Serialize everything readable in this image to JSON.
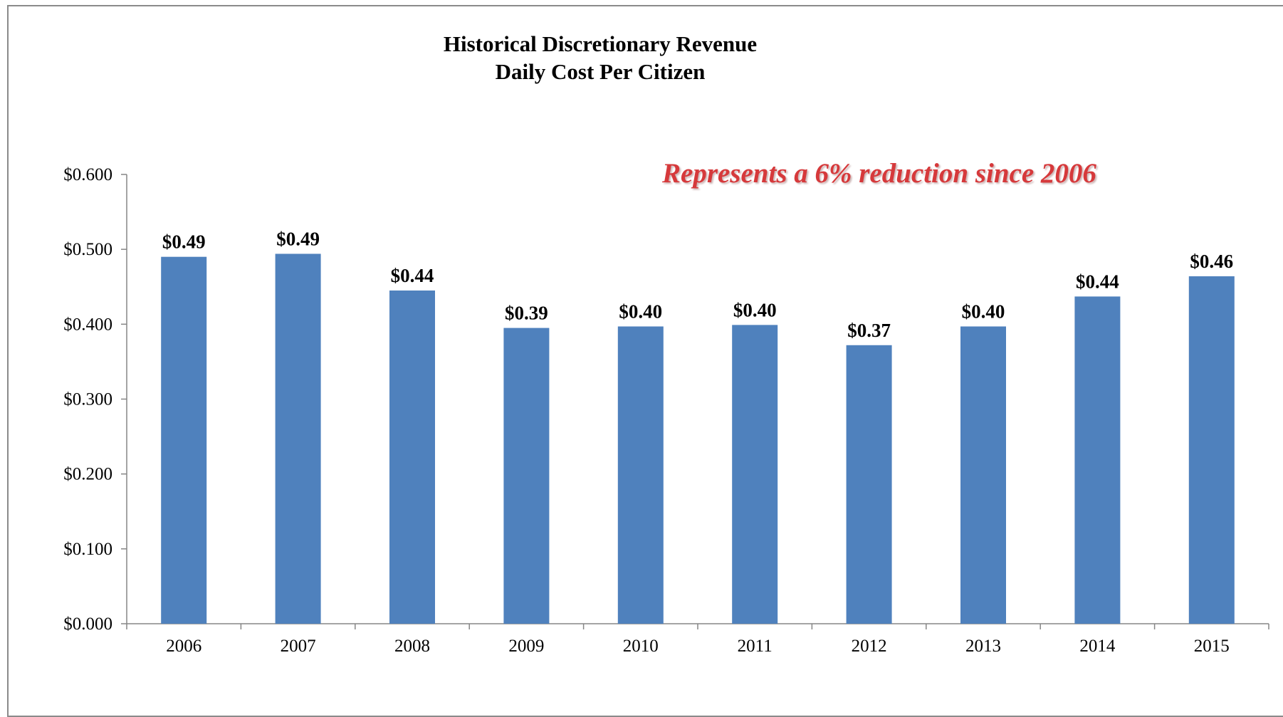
{
  "chart_data": {
    "type": "bar",
    "title": "Historical Discretionary Revenue",
    "subtitle": "Daily Cost Per Citizen",
    "annotation": "Represents a 6% reduction since 2006",
    "categories": [
      "2006",
      "2007",
      "2008",
      "2009",
      "2010",
      "2011",
      "2012",
      "2013",
      "2014",
      "2015"
    ],
    "values": [
      0.49,
      0.494,
      0.445,
      0.395,
      0.397,
      0.399,
      0.372,
      0.397,
      0.437,
      0.464
    ],
    "data_labels": [
      "$0.49",
      "$0.49",
      "$0.44",
      "$0.39",
      "$0.40",
      "$0.40",
      "$0.37",
      "$0.40",
      "$0.44",
      "$0.46"
    ],
    "y_ticks": [
      0,
      0.1,
      0.2,
      0.3,
      0.4,
      0.5,
      0.6
    ],
    "y_tick_labels": [
      "$0.000",
      "$0.100",
      "$0.200",
      "$0.300",
      "$0.400",
      "$0.500",
      "$0.600"
    ],
    "ylim": [
      0,
      0.6
    ],
    "xlabel": "",
    "ylabel": "",
    "grid": false,
    "legend": "none",
    "bar_color": "#4f81bd",
    "annotation_color": "#d6393b"
  }
}
